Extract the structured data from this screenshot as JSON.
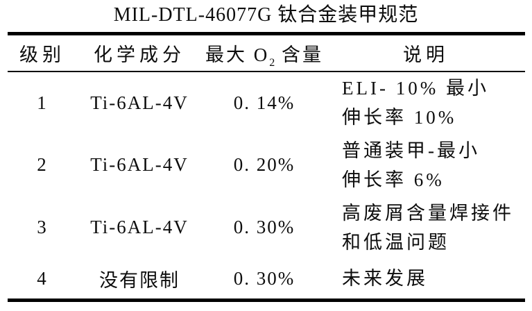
{
  "title": "MIL-DTL-46077G 钛合金装甲规范",
  "table": {
    "headers": {
      "grade": "级别",
      "composition": "化学成分",
      "o2_prefix": "最大 O",
      "o2_sub": "2",
      "o2_suffix": " 含量",
      "description": "说明"
    },
    "rows": [
      {
        "grade": "1",
        "composition": "Ti-6AL-4V",
        "max_o2": "0. 14%",
        "description_lines": [
          "ELI- 10% 最小",
          "伸长率 10%"
        ]
      },
      {
        "grade": "2",
        "composition": "Ti-6AL-4V",
        "max_o2": "0. 20%",
        "description_lines": [
          "普通装甲-最小",
          "伸长率 6%"
        ]
      },
      {
        "grade": "3",
        "composition": "Ti-6AL-4V",
        "max_o2": "0. 30%",
        "description_lines": [
          "高废屑含量焊接件",
          "和低温问题"
        ]
      },
      {
        "grade": "4",
        "composition": "没有限制",
        "max_o2": "0. 30%",
        "description_lines": [
          "未来发展"
        ]
      }
    ]
  }
}
